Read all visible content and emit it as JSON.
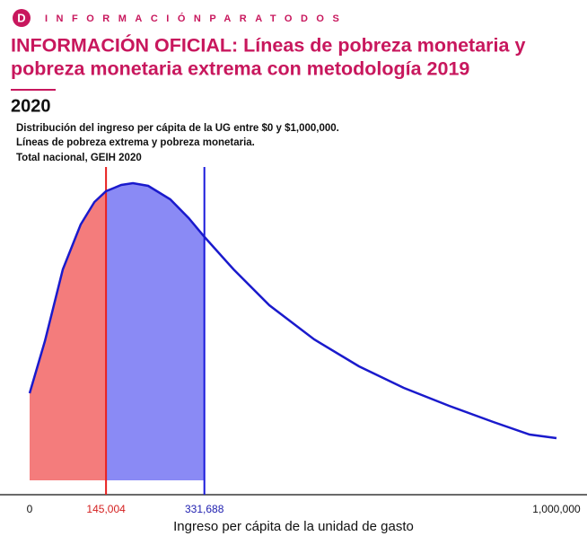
{
  "header": {
    "brand": "INFORMACIÓNPARATODOS",
    "logo": "D"
  },
  "title_lines": [
    "INFORMACIÓN OFICIAL: Líneas de pobreza monetaria y",
    "pobreza monetaria extrema con metodología 2019"
  ],
  "year": "2020",
  "chart_data": {
    "type": "density",
    "subtitle_lines": [
      "Distribución del ingreso per cápita de la UG entre $0 y $1,000,000.",
      "Líneas de pobreza extrema y pobreza monetaria.",
      "Total nacional, GEIH 2020"
    ],
    "x_label": "Ingreso per cápita de la unidad de gasto",
    "x": [
      0,
      29000,
      63000,
      97000,
      123000,
      145000,
      174000,
      196000,
      225000,
      267000,
      302000,
      332000,
      387000,
      455000,
      540000,
      625000,
      710000,
      796000,
      880000,
      949000,
      1000000
    ],
    "values": [
      97,
      155,
      235,
      285,
      310,
      322,
      329,
      331,
      328,
      313,
      292,
      271,
      235,
      195,
      157,
      127,
      103,
      83,
      65,
      51,
      47
    ],
    "color": "#1a1acc",
    "xlim": [
      0,
      1000000
    ],
    "ylim": [
      0,
      340
    ],
    "xticks": [
      0,
      {
        "value": 145004,
        "label": "145,004"
      },
      {
        "value": 331688,
        "label": "331,688"
      },
      {
        "value": 1000000,
        "label": "1,000,000"
      }
    ],
    "tick_colors": [
      "#111111",
      "#d42020",
      "#2020b0",
      "#111111"
    ],
    "line_colors": [
      "#e8201f",
      "#1a1adb"
    ],
    "fill_colors": [
      "#f47c7c",
      "#8a8af5"
    ]
  }
}
